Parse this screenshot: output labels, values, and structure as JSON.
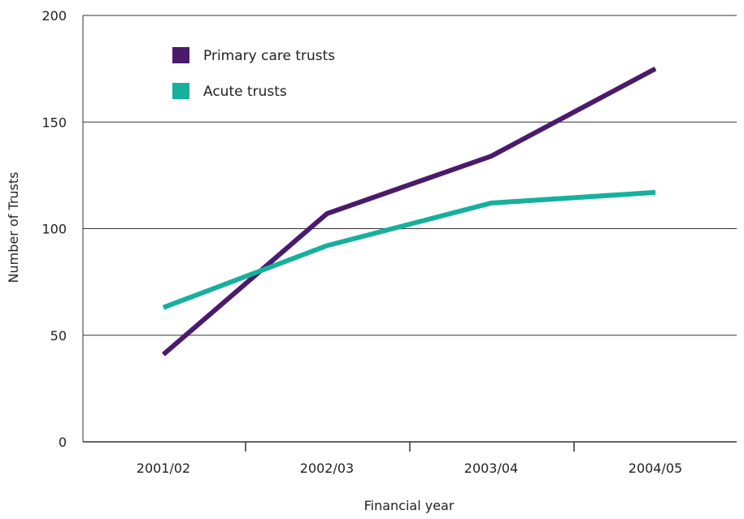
{
  "chart_data": {
    "type": "line",
    "title": "",
    "xlabel": "Financial year",
    "ylabel": "Number of Trusts",
    "categories": [
      "2001/02",
      "2002/03",
      "2003/04",
      "2004/05"
    ],
    "ylim": [
      0,
      200
    ],
    "yticks": [
      0,
      50,
      100,
      150,
      200
    ],
    "grid": true,
    "legend": "top-left",
    "series": [
      {
        "name": "Primary care trusts",
        "color": "#4a1a6b",
        "values": [
          41,
          107,
          134,
          175
        ]
      },
      {
        "name": "Acute trusts",
        "color": "#16b09c",
        "values": [
          63,
          92,
          112,
          117
        ]
      }
    ]
  }
}
